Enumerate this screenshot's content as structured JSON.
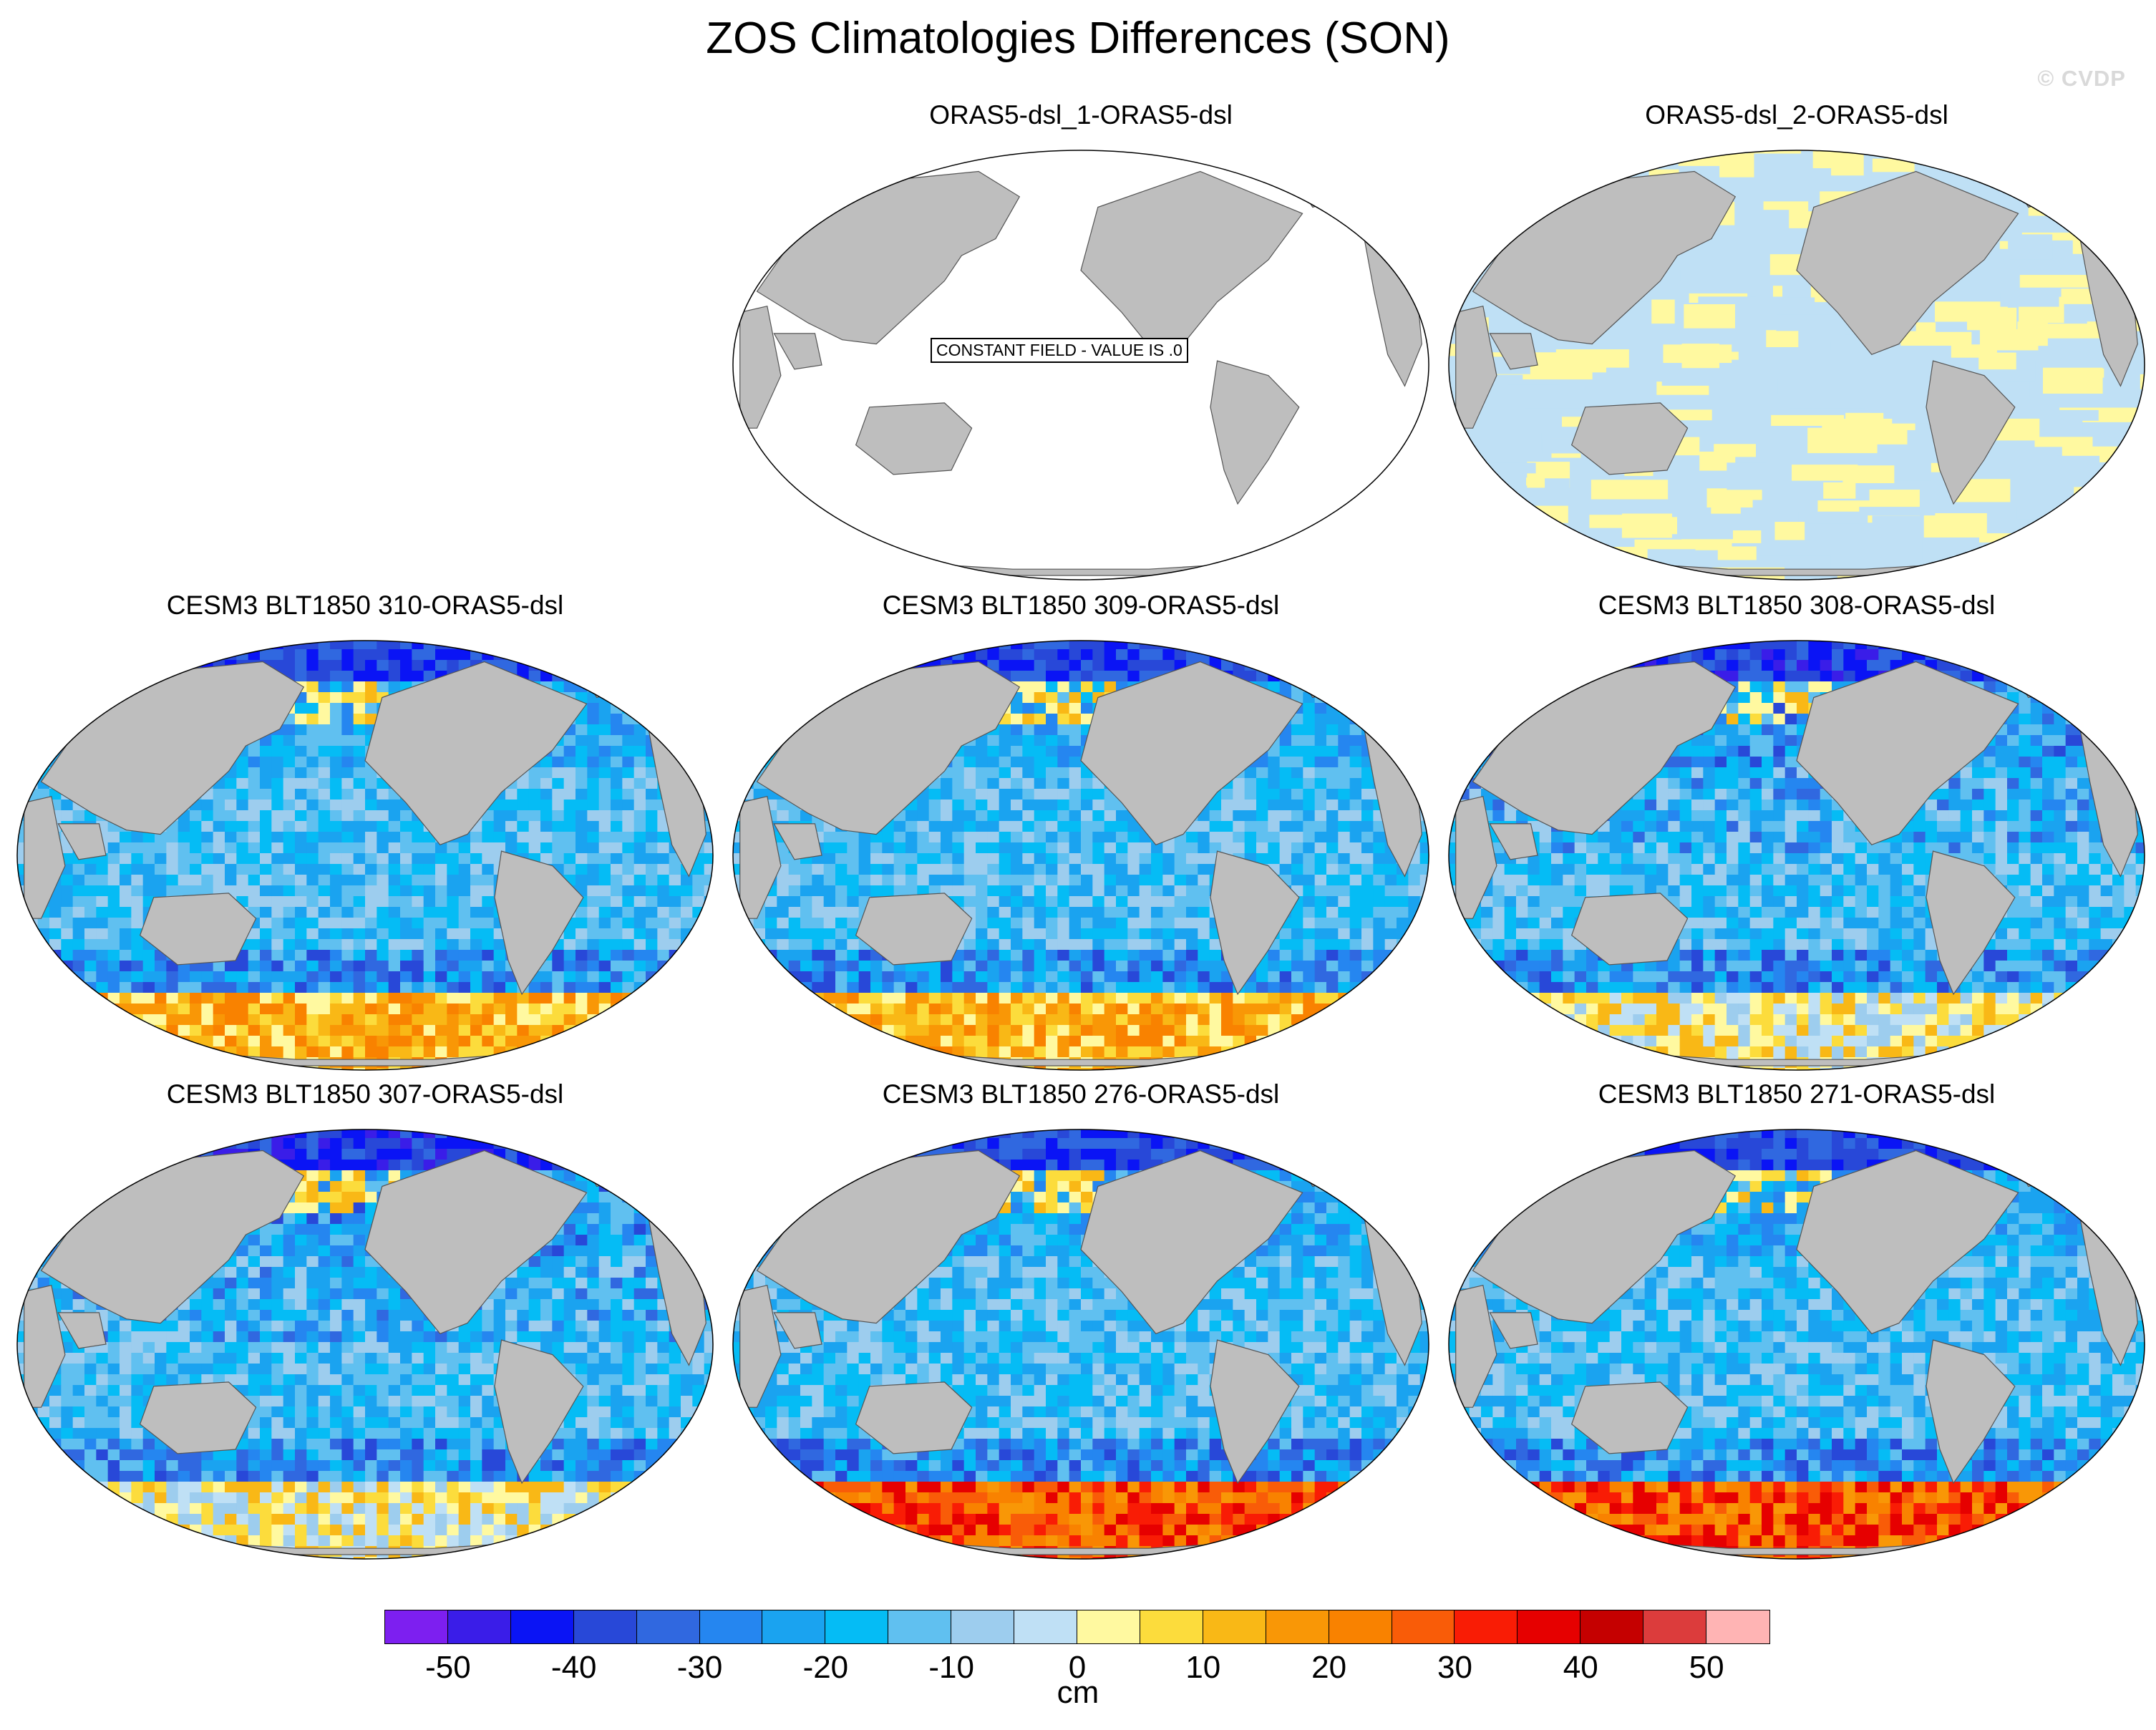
{
  "title": "ZOS Climatologies Differences (SON)",
  "credit": "© CVDP",
  "constant_field_label": "CONSTANT FIELD - VALUE IS .0",
  "panels": [
    {
      "id": "p1",
      "title": "ORAS5-dsl_1-ORAS5-dsl",
      "style": "constant"
    },
    {
      "id": "p2",
      "title": "ORAS5-dsl_2-ORAS5-dsl",
      "style": "near-zero"
    },
    {
      "id": "p3",
      "title": "CESM3 BLT1850 310-ORAS5-dsl",
      "style": "model"
    },
    {
      "id": "p4",
      "title": "CESM3 BLT1850 309-ORAS5-dsl",
      "style": "model"
    },
    {
      "id": "p5",
      "title": "CESM3 BLT1850 308-ORAS5-dsl",
      "style": "model-cold"
    },
    {
      "id": "p6",
      "title": "CESM3 BLT1850 307-ORAS5-dsl",
      "style": "model-cold"
    },
    {
      "id": "p7",
      "title": "CESM3 BLT1850 276-ORAS5-dsl",
      "style": "model-warm"
    },
    {
      "id": "p8",
      "title": "CESM3 BLT1850 271-ORAS5-dsl",
      "style": "model-warm"
    }
  ],
  "colorbar": {
    "units": "cm",
    "colors": [
      "#7d1ff0",
      "#3a1de8",
      "#0a14f5",
      "#2848d8",
      "#3068e0",
      "#2586f0",
      "#1aa3f0",
      "#05bcf5",
      "#60c0f0",
      "#9dcdee",
      "#bfe0f5",
      "#fff9a0",
      "#fcdc3c",
      "#f9b816",
      "#f99706",
      "#f98200",
      "#f95c08",
      "#f91c05",
      "#e60000",
      "#c50000",
      "#dc3c3c",
      "#ffb4b4"
    ],
    "ticks": [
      "-50",
      "-40",
      "-30",
      "-20",
      "-10",
      "0",
      "10",
      "20",
      "30",
      "40",
      "50"
    ]
  },
  "map_colors": {
    "land": "#bebebe",
    "ocean_zero": "#ffffff"
  }
}
